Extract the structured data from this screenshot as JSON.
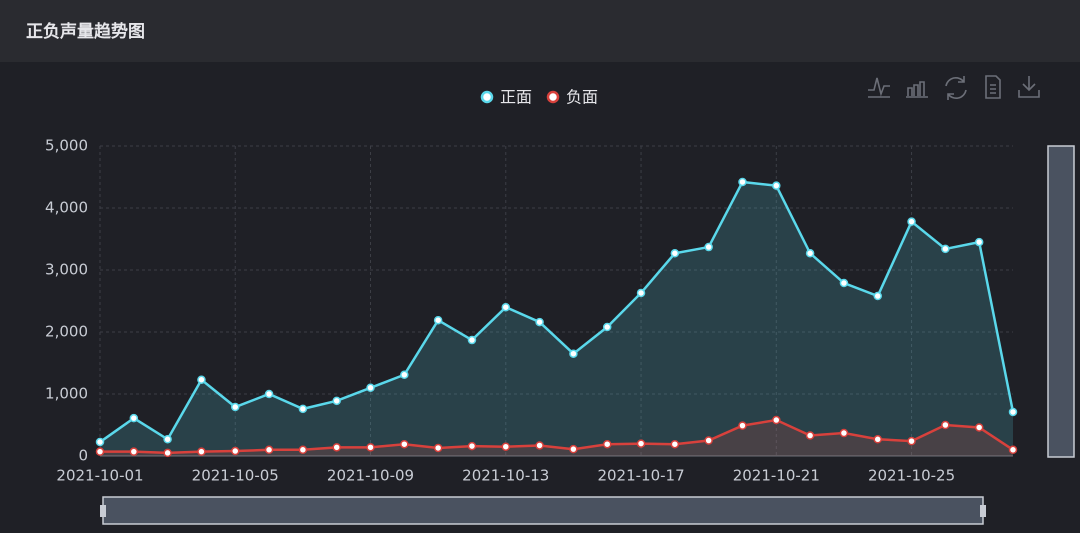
{
  "header": {
    "title": "正负声量趋势图"
  },
  "chart_data": {
    "type": "line",
    "area": true,
    "grid": true,
    "legend": "top",
    "categories": [
      "2021-10-01",
      null,
      null,
      null,
      "2021-10-05",
      null,
      null,
      null,
      "2021-10-09",
      null,
      null,
      null,
      "2021-10-13",
      null,
      null,
      null,
      "2021-10-17",
      null,
      null,
      null,
      "2021-10-21",
      null,
      null,
      null,
      "2021-10-25",
      null,
      null,
      null
    ],
    "series": [
      {
        "name": "正面",
        "color": "#5ad8eb",
        "values": [
          225,
          610,
          270,
          1230,
          790,
          1000,
          760,
          890,
          1100,
          1310,
          2190,
          1870,
          2400,
          2160,
          1650,
          2080,
          2630,
          3270,
          3370,
          4420,
          4360,
          3270,
          2790,
          2580,
          3780,
          3340,
          3450,
          710
        ]
      },
      {
        "name": "负面",
        "color": "#d8413c",
        "values": [
          70,
          70,
          50,
          70,
          80,
          100,
          100,
          140,
          140,
          190,
          130,
          160,
          150,
          170,
          110,
          190,
          200,
          190,
          250,
          490,
          580,
          330,
          370,
          270,
          240,
          500,
          460,
          100
        ]
      }
    ],
    "ylim": [
      0,
      5000
    ],
    "yticks": [
      0,
      {
        "value": 1000,
        "label": "1,000"
      },
      {
        "value": 2000,
        "label": "2,000"
      },
      {
        "value": 3000,
        "label": "3,000"
      },
      {
        "value": 4000,
        "label": "4,000"
      },
      {
        "value": 5000,
        "label": "5,000"
      }
    ]
  }
}
